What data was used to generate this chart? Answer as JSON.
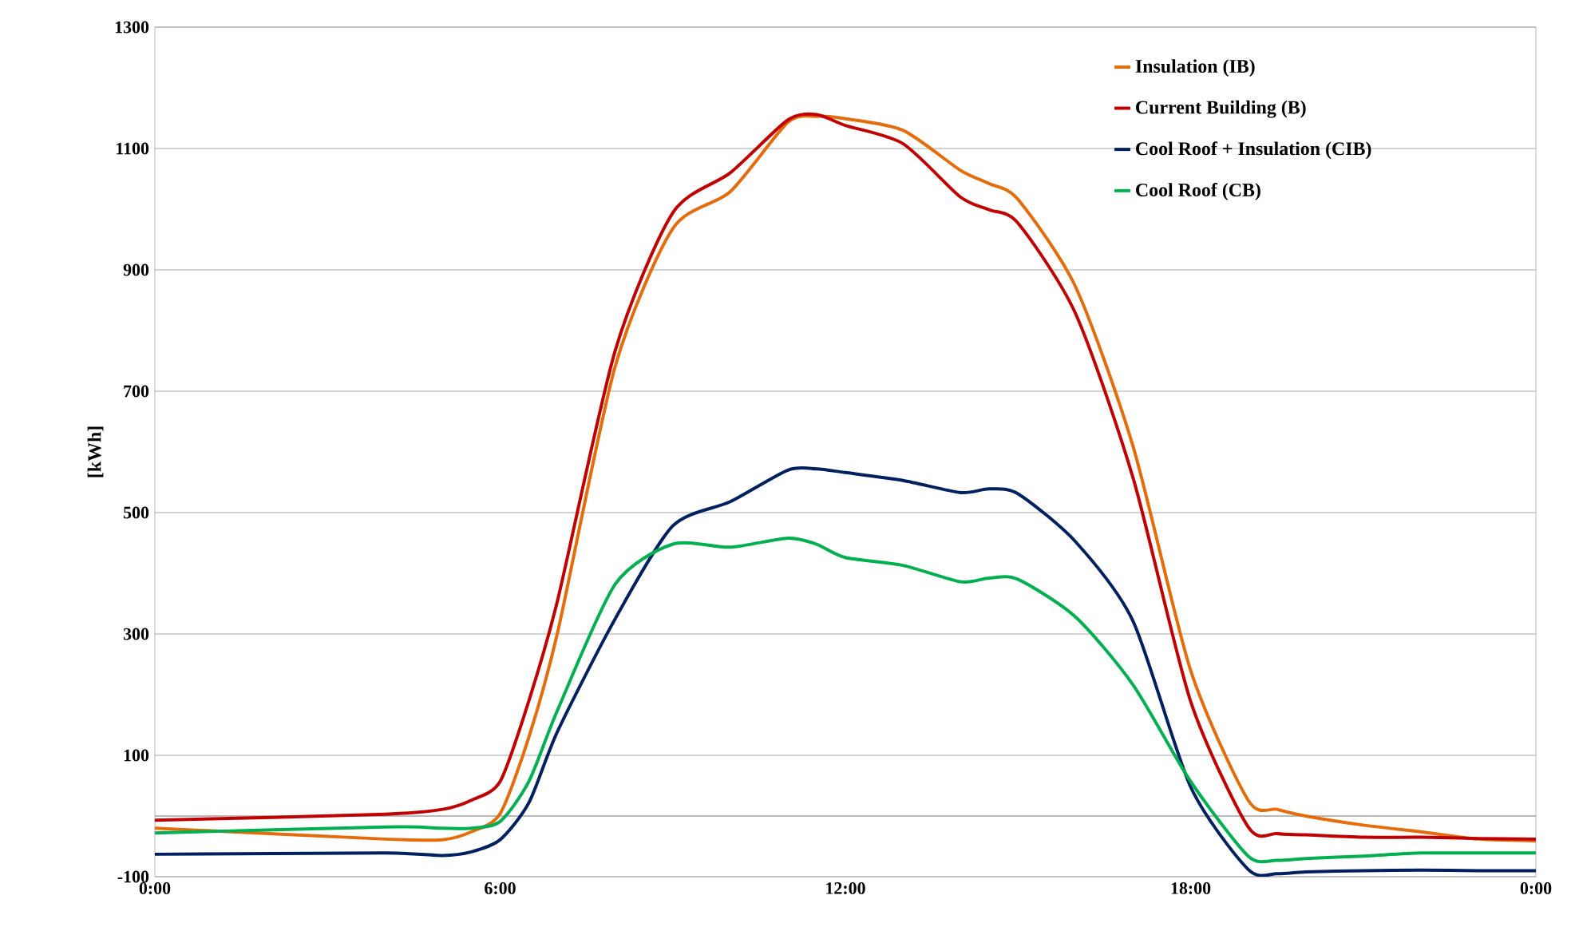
{
  "chart_data": {
    "type": "line",
    "ylabel": "[kWh]",
    "xlim": [
      0,
      24
    ],
    "xticks": [
      {
        "value": 0,
        "label": "0:00"
      },
      {
        "value": 6,
        "label": "6:00"
      },
      {
        "value": 12,
        "label": "12:00"
      },
      {
        "value": 18,
        "label": "18:00"
      },
      {
        "value": 24,
        "label": "0:00"
      }
    ],
    "ylim": [
      -100,
      1300
    ],
    "yticks": [
      -100,
      100,
      300,
      500,
      700,
      900,
      1100,
      1300
    ],
    "x": [
      0,
      4,
      5,
      5.5,
      6,
      6.5,
      7,
      8,
      9,
      10,
      11,
      11.5,
      12,
      13,
      14,
      14.5,
      15,
      16,
      17,
      18,
      19,
      19.5,
      20,
      21,
      22,
      23,
      24
    ],
    "series": [
      {
        "name": "Insulation (IB)",
        "color": "#e46c0a",
        "values": [
          -20,
          -38,
          -39,
          -26,
          4,
          130,
          303,
          741,
          968,
          1029,
          1143,
          1153,
          1149,
          1130,
          1064,
          1042,
          1016,
          872,
          609,
          240,
          26,
          11,
          0,
          -15,
          -26,
          -38,
          -41
        ]
      },
      {
        "name": "Current Building (B)",
        "color": "#c00000",
        "values": [
          -7,
          3,
          11,
          26,
          57,
          190,
          356,
          767,
          994,
          1060,
          1147,
          1156,
          1138,
          1108,
          1020,
          999,
          977,
          828,
          557,
          189,
          -18,
          -29,
          -31,
          -35,
          -35,
          -37,
          -38
        ]
      },
      {
        "name": "Cool Roof + Insulation (CIB)",
        "color": "#002060",
        "values": [
          -63,
          -61,
          -65,
          -59,
          -39,
          22,
          140,
          325,
          478,
          518,
          570,
          572,
          566,
          553,
          533,
          539,
          531,
          452,
          321,
          48,
          -88,
          -95,
          -92,
          -90,
          -89,
          -90,
          -90
        ]
      },
      {
        "name": "Cool Roof (CB)",
        "color": "#00b050",
        "values": [
          -28,
          -18,
          -20,
          -20,
          -9,
          57,
          175,
          382,
          448,
          443,
          458,
          448,
          426,
          413,
          386,
          392,
          390,
          328,
          216,
          57,
          -66,
          -73,
          -70,
          -66,
          -61,
          -61,
          -61
        ]
      }
    ],
    "ref_lines": [
      {
        "axis": "y",
        "value": 0,
        "color": "#a0a0a0"
      }
    ],
    "grid": "y",
    "legend": "top right",
    "marker": "none",
    "line_style": "solid"
  }
}
